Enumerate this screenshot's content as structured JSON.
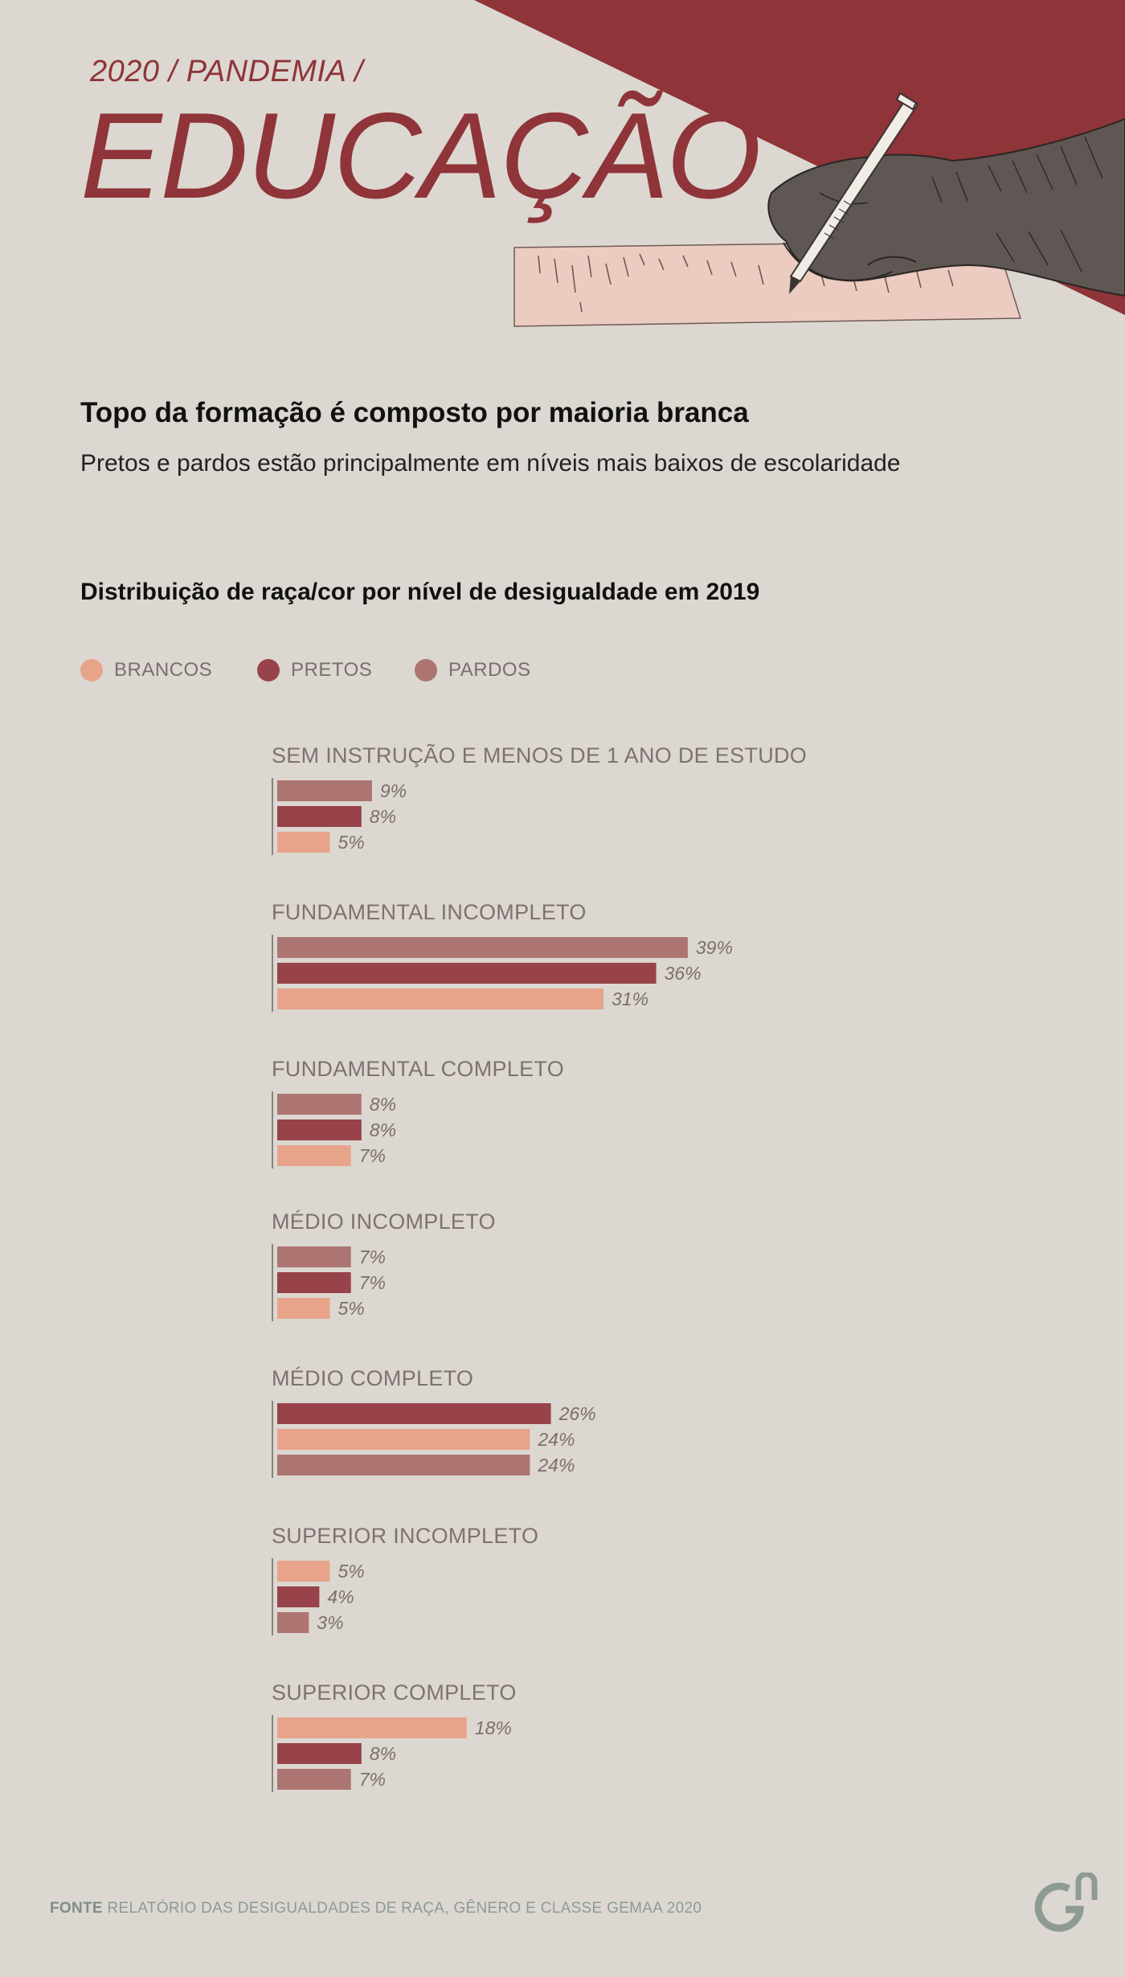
{
  "header": {
    "kicker": "2020 / PANDEMIA /",
    "title": "EDUCAÇÃO"
  },
  "headline": "Topo da formação é composto por maioria branca",
  "subheadline": "Pretos e pardos estão principalmente em níveis mais baixos de escolaridade",
  "footer": {
    "source_label": "FONTE",
    "source_text": "RELATÓRIO DAS DESIGUALDADES DE RAÇA, GÊNERO E CLASSE GEMAA 2020"
  },
  "icons": {
    "illustration": "hand-writing-with-pen-illustration",
    "logo": "gn-logo-icon"
  },
  "colors": {
    "background": "#dcd7d1",
    "accent": "#8f3438",
    "brancos": "#e8a48a",
    "pretos": "#974349",
    "pardos": "#ad7571",
    "logo": "#8e9a94"
  },
  "chart_data": {
    "type": "bar",
    "orientation": "horizontal",
    "title": "Distribuição de raça/cor por nível de desigualdade em 2019",
    "unit": "%",
    "legend": [
      {
        "key": "brancos",
        "label": "BRANCOS"
      },
      {
        "key": "pretos",
        "label": "PRETOS"
      },
      {
        "key": "pardos",
        "label": "PARDOS"
      }
    ],
    "groups": [
      {
        "label": "SEM INSTRUÇÃO E MENOS DE 1 ANO DE ESTUDO",
        "bars": [
          {
            "series": "pardos",
            "value": 9,
            "label": "9%"
          },
          {
            "series": "pretos",
            "value": 8,
            "label": "8%"
          },
          {
            "series": "brancos",
            "value": 5,
            "label": "5%"
          }
        ]
      },
      {
        "label": "FUNDAMENTAL INCOMPLETO",
        "bars": [
          {
            "series": "pardos",
            "value": 39,
            "label": "39%"
          },
          {
            "series": "pretos",
            "value": 36,
            "label": "36%"
          },
          {
            "series": "brancos",
            "value": 31,
            "label": "31%"
          }
        ]
      },
      {
        "label": "FUNDAMENTAL COMPLETO",
        "bars": [
          {
            "series": "pardos",
            "value": 8,
            "label": "8%"
          },
          {
            "series": "pretos",
            "value": 8,
            "label": "8%"
          },
          {
            "series": "brancos",
            "value": 7,
            "label": "7%"
          }
        ]
      },
      {
        "label": "MÉDIO INCOMPLETO",
        "bars": [
          {
            "series": "pardos",
            "value": 7,
            "label": "7%"
          },
          {
            "series": "pretos",
            "value": 7,
            "label": "7%"
          },
          {
            "series": "brancos",
            "value": 5,
            "label": "5%"
          }
        ]
      },
      {
        "label": "MÉDIO COMPLETO",
        "bars": [
          {
            "series": "pretos",
            "value": 26,
            "label": "26%"
          },
          {
            "series": "brancos",
            "value": 24,
            "label": "24%"
          },
          {
            "series": "pardos",
            "value": 24,
            "label": "24%"
          }
        ]
      },
      {
        "label": "SUPERIOR INCOMPLETO",
        "bars": [
          {
            "series": "brancos",
            "value": 5,
            "label": "5%"
          },
          {
            "series": "pretos",
            "value": 4,
            "label": "4%"
          },
          {
            "series": "pardos",
            "value": 3,
            "label": "3%"
          }
        ]
      },
      {
        "label": "SUPERIOR COMPLETO",
        "bars": [
          {
            "series": "brancos",
            "value": 18,
            "label": "18%"
          },
          {
            "series": "pretos",
            "value": 8,
            "label": "8%"
          },
          {
            "series": "pardos",
            "value": 7,
            "label": "7%"
          }
        ]
      }
    ]
  }
}
